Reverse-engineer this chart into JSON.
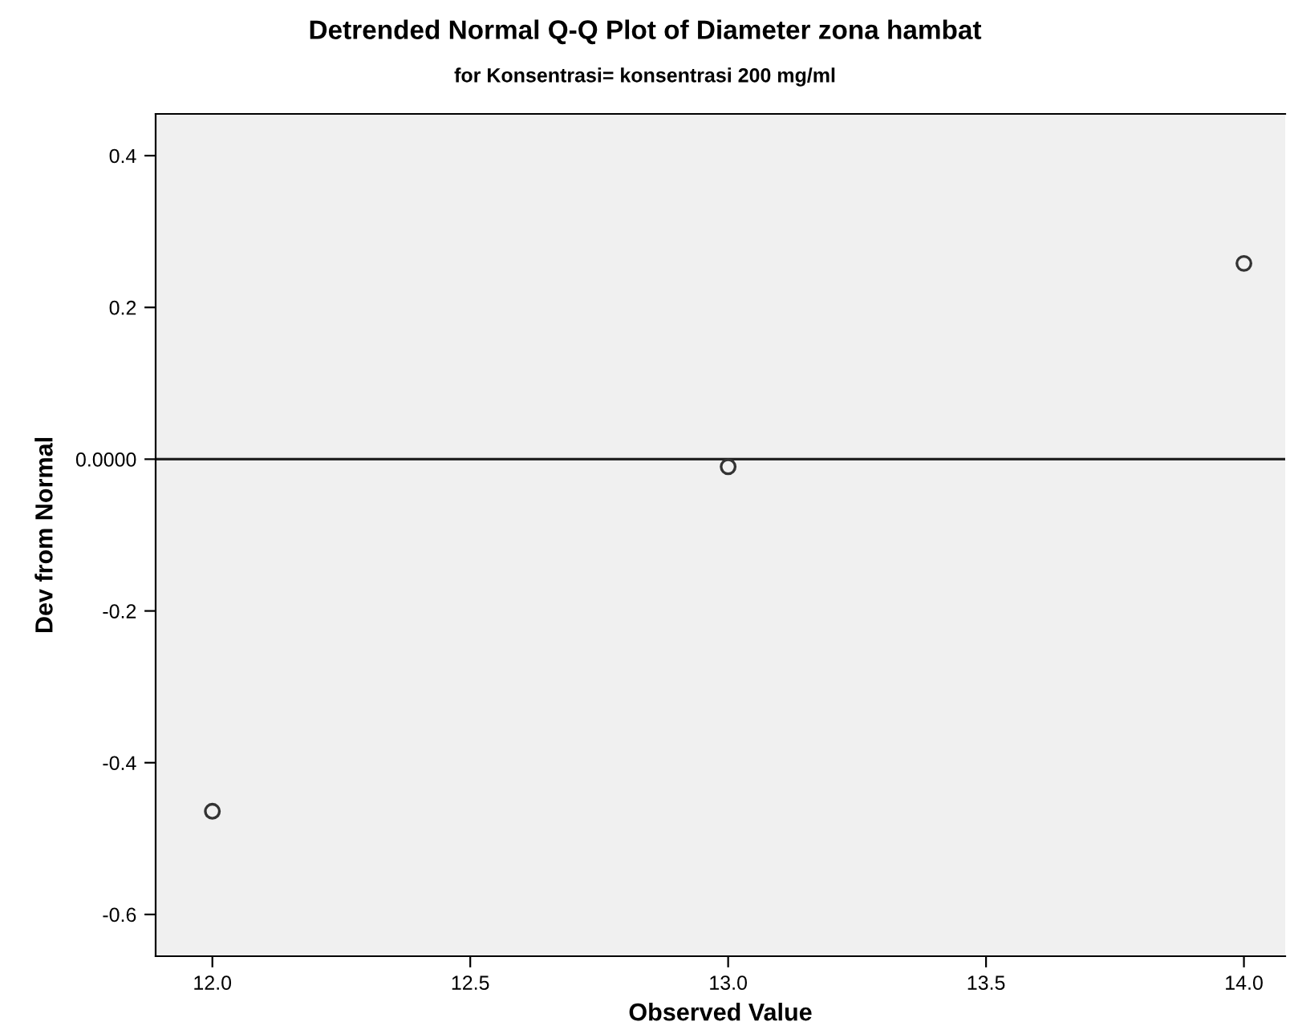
{
  "chart_data": {
    "type": "scatter",
    "title": "Detrended Normal Q-Q Plot of Diameter zona hambat",
    "subtitle": "for Konsentrasi= konsentrasi 200 mg/ml",
    "xlabel": "Observed Value",
    "ylabel": "Dev from Normal",
    "x": [
      12.0,
      13.0,
      14.0
    ],
    "values": [
      -0.464,
      -0.01,
      0.258
    ],
    "color": "#333333",
    "marker": "circle",
    "xlim": [
      11.89,
      14.08
    ],
    "xticks": [
      {
        "value": 12,
        "label": "12.0"
      },
      {
        "value": 12.5,
        "label": "12.5"
      },
      {
        "value": 13,
        "label": "13.0"
      },
      {
        "value": 13.5,
        "label": "13.5"
      },
      {
        "value": 14,
        "label": "14.0"
      }
    ],
    "ylim": [
      -0.655,
      0.455
    ],
    "yticks": [
      {
        "value": -0.6,
        "label": "-0.6"
      },
      {
        "value": -0.4,
        "label": "-0.4"
      },
      {
        "value": -0.2,
        "label": "-0.2"
      },
      {
        "value": 0,
        "label": "0.0000"
      },
      {
        "value": 0.2,
        "label": "0.2"
      },
      {
        "value": 0.4,
        "label": "0.4"
      }
    ],
    "ref_lines": [
      {
        "axis": "y",
        "value": 0,
        "color": "#222222"
      }
    ],
    "grid": false,
    "legend": false
  }
}
